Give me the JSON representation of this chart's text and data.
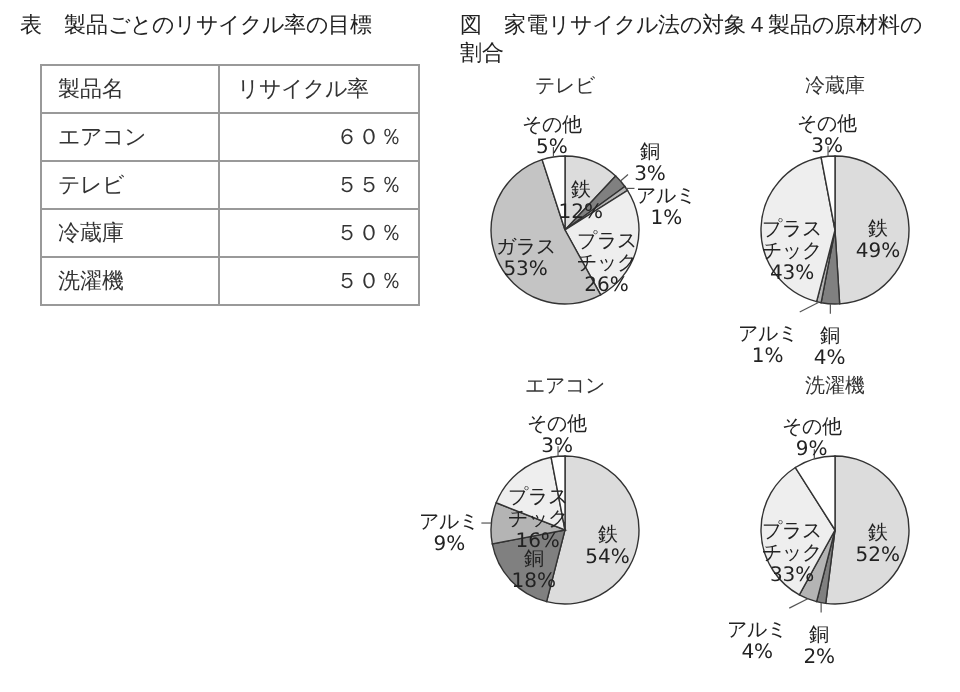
{
  "chart_data": [
    {
      "type": "other",
      "title": "表　製品ごとのリサイクル率の目標",
      "xlabel": "製品名",
      "ylabel": "リサイクル率",
      "categories": [
        "エアコン",
        "テレビ",
        "冷蔵庫",
        "洗濯機"
      ],
      "value_labels": [
        "６０％",
        "５５％",
        "５０％",
        "５０％"
      ]
    },
    {
      "type": "other",
      "title": "図　家電リサイクル法の対象４製品の原材料の割合"
    },
    {
      "type": "pie",
      "title": "テレビ",
      "categories": [
        "鉄",
        "銅",
        "アルミ",
        "プラスチック",
        "ガラス",
        "その他"
      ],
      "values": [
        12,
        3,
        1,
        26,
        53,
        5
      ],
      "colors": [
        "#dcdcdc",
        "#808080",
        "#b4b4b4",
        "#eeeeee",
        "#c4c4c4",
        "#ffffff"
      ],
      "value_labels": [
        "12%",
        "3%",
        "1%",
        "26%",
        "53%",
        "5%"
      ]
    },
    {
      "type": "pie",
      "title": "冷蔵庫",
      "categories": [
        "鉄",
        "銅",
        "アルミ",
        "プラスチック",
        "その他"
      ],
      "values": [
        49,
        4,
        1,
        43,
        3
      ],
      "colors": [
        "#dcdcdc",
        "#808080",
        "#b4b4b4",
        "#eeeeee",
        "#ffffff"
      ],
      "value_labels": [
        "49%",
        "4%",
        "1%",
        "43%",
        "3%"
      ]
    },
    {
      "type": "pie",
      "title": "エアコン",
      "categories": [
        "鉄",
        "銅",
        "アルミ",
        "プラスチック",
        "その他"
      ],
      "values": [
        54,
        18,
        9,
        16,
        3
      ],
      "colors": [
        "#dcdcdc",
        "#808080",
        "#b4b4b4",
        "#eeeeee",
        "#ffffff"
      ],
      "value_labels": [
        "54%",
        "18%",
        "9%",
        "16%",
        "3%"
      ]
    },
    {
      "type": "pie",
      "title": "洗濯機",
      "categories": [
        "鉄",
        "銅",
        "アルミ",
        "プラスチック",
        "その他"
      ],
      "values": [
        52,
        2,
        4,
        33,
        9
      ],
      "colors": [
        "#dcdcdc",
        "#808080",
        "#b4b4b4",
        "#eeeeee",
        "#ffffff"
      ],
      "value_labels": [
        "52%",
        "2%",
        "4%",
        "33%",
        "9%"
      ]
    }
  ]
}
